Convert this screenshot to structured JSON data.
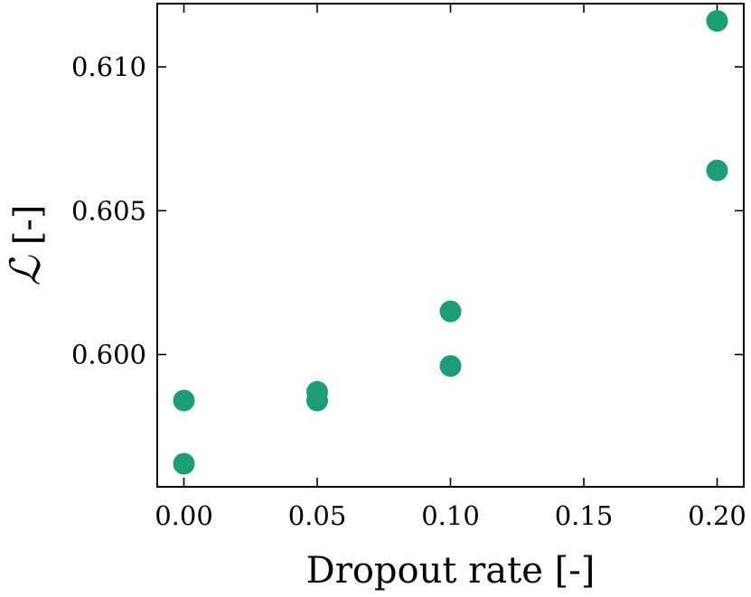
{
  "chart_data": {
    "type": "scatter",
    "xlabel": "Dropout rate [-]",
    "ylabel_symbol": "ℒ",
    "ylabel_unit": "[-]",
    "xlim": [
      -0.01,
      0.21
    ],
    "ylim": [
      0.5954,
      0.6122
    ],
    "xticks": [
      0.0,
      0.05,
      0.1,
      0.15,
      0.2
    ],
    "xtick_labels": [
      "0.00",
      "0.05",
      "0.10",
      "0.15",
      "0.20"
    ],
    "yticks": [
      0.6,
      0.605,
      0.61
    ],
    "ytick_labels": [
      "0.600",
      "0.605",
      "0.610"
    ],
    "tick_direction": "in",
    "grid": false,
    "marker_color": "#1b9e77",
    "points": [
      {
        "x": 0.0,
        "y": 0.5984
      },
      {
        "x": 0.0,
        "y": 0.5962
      },
      {
        "x": 0.05,
        "y": 0.5984
      },
      {
        "x": 0.05,
        "y": 0.5987
      },
      {
        "x": 0.1,
        "y": 0.5996
      },
      {
        "x": 0.1,
        "y": 0.6015
      },
      {
        "x": 0.2,
        "y": 0.6064
      },
      {
        "x": 0.2,
        "y": 0.6116
      }
    ]
  }
}
